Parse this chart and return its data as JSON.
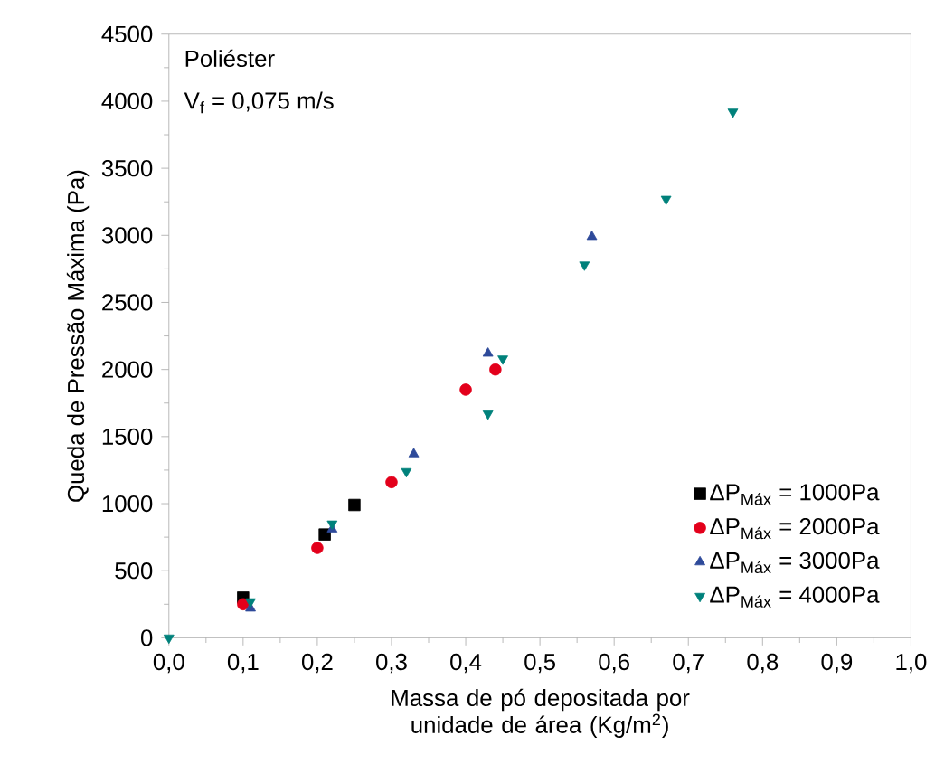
{
  "chart_data": {
    "type": "scatter",
    "xlabel": "Massa de pó depositada por unidade de área (Kg/m$^{2}$)",
    "ylabel": "Queda de Pressão Máxima (Pa)",
    "annotations": [
      "Poliéster",
      "V$_{f}$ = 0,075 m/s"
    ],
    "xlim": [
      0,
      1
    ],
    "ylim": [
      0,
      4500
    ],
    "xticks": [
      {
        "value": 0,
        "label": "0,0"
      },
      {
        "value": 0.1,
        "label": "0,1"
      },
      {
        "value": 0.2,
        "label": "0,2"
      },
      {
        "value": 0.3,
        "label": "0,3"
      },
      {
        "value": 0.4,
        "label": "0,4"
      },
      {
        "value": 0.5,
        "label": "0,5"
      },
      {
        "value": 0.6,
        "label": "0,6"
      },
      {
        "value": 0.7,
        "label": "0,7"
      },
      {
        "value": 0.8,
        "label": "0,8"
      },
      {
        "value": 0.9,
        "label": "0,9"
      },
      {
        "value": 1,
        "label": "1,0"
      }
    ],
    "yticks": [
      0,
      500,
      1000,
      1500,
      2000,
      2500,
      3000,
      3500,
      4000,
      4500
    ],
    "legend": "bottom right",
    "grid": false,
    "series": [
      {
        "name": "ΔP$_{Máx}$ = 1000Pa",
        "color": "#000000",
        "marker": "square",
        "x": [
          0.1,
          0.21,
          0.25
        ],
        "values": [
          300,
          770,
          990
        ]
      },
      {
        "name": "ΔP$_{Máx}$ = 2000Pa",
        "color": "#e3001b",
        "marker": "circle",
        "x": [
          0.1,
          0.2,
          0.3,
          0.4,
          0.44
        ],
        "values": [
          250,
          670,
          1160,
          1850,
          2000
        ]
      },
      {
        "name": "ΔP$_{Máx}$ = 3000Pa",
        "color": "#2e4a9a",
        "marker": "triangle",
        "x": [
          0.11,
          0.22,
          0.33,
          0.43,
          0.57
        ],
        "values": [
          220,
          810,
          1370,
          2120,
          2990
        ]
      },
      {
        "name": "ΔP$_{Máx}$ = 4000Pa",
        "color": "#00817b",
        "marker": "triangle-down",
        "x": [
          0,
          0.11,
          0.22,
          0.32,
          0.43,
          0.45,
          0.56,
          0.67,
          0.76
        ],
        "values": [
          0,
          270,
          850,
          1240,
          1670,
          2080,
          2780,
          3270,
          3920
        ]
      }
    ]
  }
}
